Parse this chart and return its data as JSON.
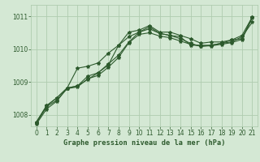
{
  "title": "Graphe pression niveau de la mer (hPa)",
  "bg_color": "#d4e8d4",
  "grid_color": "#b0ccb0",
  "line_color": "#2d5a2d",
  "xlim": [
    -0.5,
    21.5
  ],
  "ylim": [
    1007.65,
    1011.35
  ],
  "yticks": [
    1008,
    1009,
    1010,
    1011
  ],
  "xticks": [
    0,
    1,
    2,
    3,
    4,
    5,
    6,
    7,
    8,
    9,
    10,
    11,
    12,
    13,
    14,
    15,
    16,
    17,
    18,
    19,
    20,
    21
  ],
  "series": [
    [
      1007.75,
      1008.25,
      1008.45,
      1008.8,
      1008.85,
      1009.1,
      1009.2,
      1009.45,
      1009.75,
      1010.2,
      1010.45,
      1010.5,
      1010.4,
      1010.35,
      1010.25,
      1010.15,
      1010.1,
      1010.1,
      1010.15,
      1010.2,
      1010.3,
      1010.95
    ],
    [
      1007.72,
      1008.18,
      1008.42,
      1008.82,
      1008.88,
      1009.08,
      1009.28,
      1009.55,
      1009.82,
      1010.22,
      1010.52,
      1010.62,
      1010.48,
      1010.42,
      1010.32,
      1010.18,
      1010.08,
      1010.12,
      1010.18,
      1010.28,
      1010.42,
      1010.98
    ],
    [
      1007.78,
      1008.28,
      1008.52,
      1008.82,
      1009.42,
      1009.48,
      1009.58,
      1009.88,
      1010.12,
      1010.38,
      1010.52,
      1010.68,
      1010.48,
      1010.42,
      1010.38,
      1010.12,
      1010.12,
      1010.12,
      1010.18,
      1010.22,
      1010.38,
      1010.82
    ],
    [
      1007.78,
      1008.28,
      1008.52,
      1008.82,
      1008.88,
      1009.18,
      1009.28,
      1009.52,
      1010.12,
      1010.52,
      1010.58,
      1010.72,
      1010.52,
      1010.52,
      1010.42,
      1010.32,
      1010.18,
      1010.22,
      1010.22,
      1010.28,
      1010.32,
      1010.98
    ]
  ]
}
